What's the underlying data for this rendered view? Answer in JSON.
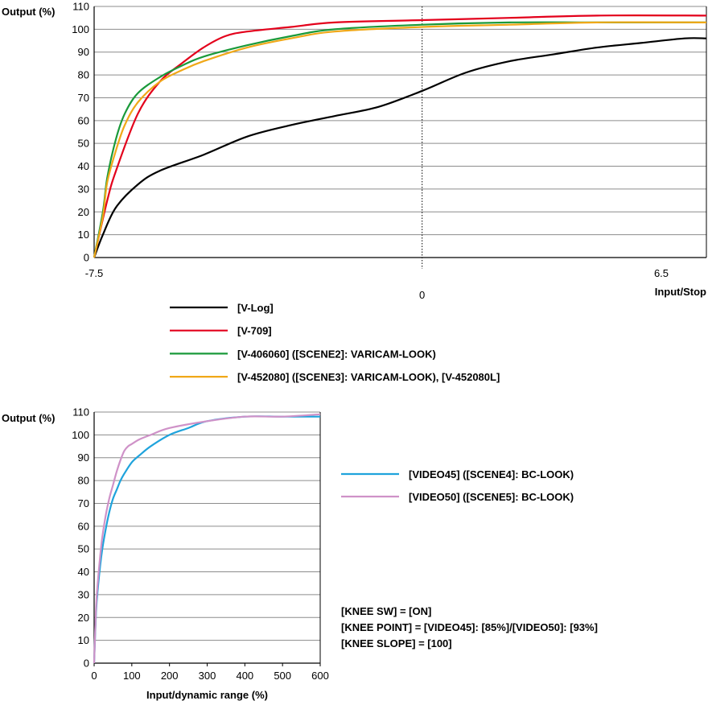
{
  "chart_data": [
    {
      "type": "line",
      "ylabel": "Output (%)",
      "xlabel": "Input/Stop",
      "xlim": [
        -7.5,
        6.5
      ],
      "ylim": [
        0,
        110
      ],
      "xticks": [
        "-7.5",
        "0",
        "6.5"
      ],
      "yticks": [
        "0",
        "10",
        "20",
        "30",
        "40",
        "50",
        "60",
        "70",
        "80",
        "90",
        "100",
        "110"
      ],
      "grid": true,
      "reference_line": {
        "x": 0,
        "style": "dotted"
      },
      "legend_placement": "below",
      "series": [
        {
          "name": "[V-Log]",
          "color": "#000000",
          "x": [
            -7.5,
            -7.3,
            -7.0,
            -6.5,
            -6.0,
            -5.0,
            -4.0,
            -3.0,
            -2.0,
            -1.0,
            0,
            1,
            2,
            3,
            4,
            5,
            6,
            6.5
          ],
          "y": [
            0,
            10,
            22,
            32,
            38,
            45,
            53,
            58,
            62,
            66,
            73,
            81,
            86,
            89,
            92,
            94,
            96,
            96
          ]
        },
        {
          "name": "[V-709]",
          "color": "#e3001b",
          "x": [
            -7.5,
            -7.2,
            -7.0,
            -6.5,
            -6.0,
            -5.5,
            -5.0,
            -4.5,
            -4.0,
            -3.0,
            -2.0,
            0,
            2,
            4,
            6.5
          ],
          "y": [
            0,
            25,
            38,
            63,
            77,
            85,
            92,
            97,
            99,
            101,
            103,
            104,
            105,
            106,
            106
          ]
        },
        {
          "name": "[V-406060] ([SCENE2]: VARICAM-LOOK)",
          "color": "#1a9a3a",
          "x": [
            -7.5,
            -7.3,
            -7.2,
            -7.0,
            -6.8,
            -6.5,
            -6.0,
            -5.5,
            -5.0,
            -4.0,
            -3.0,
            -2.0,
            0,
            2,
            4,
            6.5
          ],
          "y": [
            0,
            20,
            35,
            52,
            63,
            72,
            79,
            84,
            88,
            93,
            97,
            100,
            102,
            103,
            103,
            103
          ]
        },
        {
          "name": "[V-452080] ([SCENE3]: VARICAM-LOOK), [V-452080L]",
          "color": "#f0a818",
          "x": [
            -7.5,
            -7.3,
            -7.2,
            -7.0,
            -6.8,
            -6.5,
            -6.0,
            -5.5,
            -5.0,
            -4.0,
            -3.0,
            -2.0,
            0,
            2,
            4,
            6.5
          ],
          "y": [
            0,
            18,
            33,
            47,
            58,
            68,
            77,
            82,
            86,
            92,
            96,
            99,
            101,
            102,
            103,
            103
          ]
        }
      ]
    },
    {
      "type": "line",
      "ylabel": "Output (%)",
      "xlabel": "Input/dynamic range (%)",
      "xlim": [
        0,
        600
      ],
      "ylim": [
        0,
        110
      ],
      "xticks": [
        "0",
        "100",
        "200",
        "300",
        "400",
        "500",
        "600"
      ],
      "yticks": [
        "0",
        "10",
        "20",
        "30",
        "40",
        "50",
        "60",
        "70",
        "80",
        "90",
        "100",
        "110"
      ],
      "grid": true,
      "legend_placement": "right",
      "series": [
        {
          "name": "[VIDEO45] ([SCENE4]: BC-LOOK)",
          "color": "#1fa3dc",
          "x": [
            0,
            5,
            10,
            20,
            30,
            40,
            50,
            60,
            70,
            80,
            100,
            120,
            150,
            200,
            250,
            300,
            400,
            500,
            600
          ],
          "y": [
            0,
            22,
            33,
            48,
            58,
            66,
            72,
            76,
            80,
            83,
            88,
            91,
            95,
            100,
            103,
            106,
            108,
            108,
            108
          ]
        },
        {
          "name": "[VIDEO50] ([SCENE5]: BC-LOOK)",
          "color": "#cf92c8",
          "x": [
            0,
            5,
            10,
            20,
            30,
            40,
            50,
            60,
            70,
            80,
            90,
            100,
            120,
            150,
            200,
            300,
            400,
            500,
            600
          ],
          "y": [
            0,
            24,
            36,
            53,
            64,
            72,
            78,
            84,
            89,
            93,
            95,
            96,
            98,
            100,
            103,
            106,
            108,
            108,
            109
          ]
        }
      ]
    }
  ],
  "notes": [
    "[KNEE SW] = [ON]",
    "[KNEE POINT] = [VIDEO45]: [85%]/[VIDEO50]: [93%]",
    "[KNEE SLOPE] = [100]"
  ]
}
